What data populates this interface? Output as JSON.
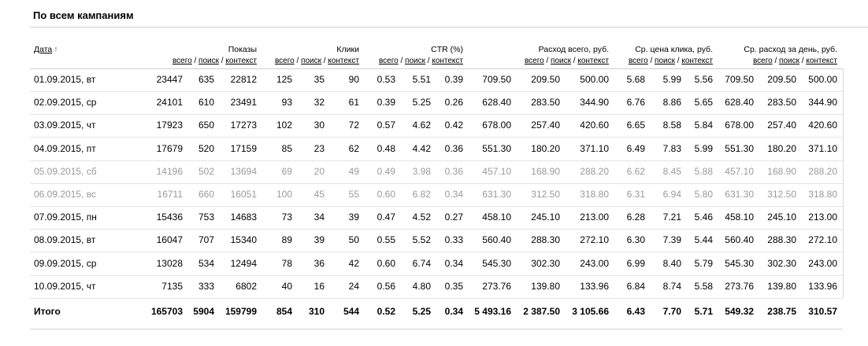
{
  "title": "По всем кампаниям",
  "header": {
    "date_label": "Дата",
    "sort_arrow": "↑",
    "groups": [
      {
        "label": "Показы"
      },
      {
        "label": "Клики"
      },
      {
        "label": "CTR (%)"
      },
      {
        "label": "Расход всего, руб."
      },
      {
        "label": "Ср. цена клика, руб."
      },
      {
        "label": "Ср. расход за день, руб."
      }
    ],
    "sub_labels": {
      "all": "всего",
      "search": "поиск",
      "context": "контекст",
      "sep": "/"
    }
  },
  "rows": [
    {
      "date": "01.09.2015, вт",
      "weekend": false,
      "v": [
        "23447",
        "635",
        "22812",
        "125",
        "35",
        "90",
        "0.53",
        "5.51",
        "0.39",
        "709.50",
        "209.50",
        "500.00",
        "5.68",
        "5.99",
        "5.56",
        "709.50",
        "209.50",
        "500.00"
      ]
    },
    {
      "date": "02.09.2015, ср",
      "weekend": false,
      "v": [
        "24101",
        "610",
        "23491",
        "93",
        "32",
        "61",
        "0.39",
        "5.25",
        "0.26",
        "628.40",
        "283.50",
        "344.90",
        "6.76",
        "8.86",
        "5.65",
        "628.40",
        "283.50",
        "344.90"
      ]
    },
    {
      "date": "03.09.2015, чт",
      "weekend": false,
      "v": [
        "17923",
        "650",
        "17273",
        "102",
        "30",
        "72",
        "0.57",
        "4.62",
        "0.42",
        "678.00",
        "257.40",
        "420.60",
        "6.65",
        "8.58",
        "5.84",
        "678.00",
        "257.40",
        "420.60"
      ]
    },
    {
      "date": "04.09.2015, пт",
      "weekend": false,
      "v": [
        "17679",
        "520",
        "17159",
        "85",
        "23",
        "62",
        "0.48",
        "4.42",
        "0.36",
        "551.30",
        "180.20",
        "371.10",
        "6.49",
        "7.83",
        "5.99",
        "551.30",
        "180.20",
        "371.10"
      ]
    },
    {
      "date": "05.09.2015, сб",
      "weekend": true,
      "v": [
        "14196",
        "502",
        "13694",
        "69",
        "20",
        "49",
        "0.49",
        "3.98",
        "0.36",
        "457.10",
        "168.90",
        "288.20",
        "6.62",
        "8.45",
        "5.88",
        "457.10",
        "168.90",
        "288.20"
      ]
    },
    {
      "date": "06.09.2015, вс",
      "weekend": true,
      "v": [
        "16711",
        "660",
        "16051",
        "100",
        "45",
        "55",
        "0.60",
        "6.82",
        "0.34",
        "631.30",
        "312.50",
        "318.80",
        "6.31",
        "6.94",
        "5.80",
        "631.30",
        "312.50",
        "318.80"
      ]
    },
    {
      "date": "07.09.2015, пн",
      "weekend": false,
      "v": [
        "15436",
        "753",
        "14683",
        "73",
        "34",
        "39",
        "0.47",
        "4.52",
        "0.27",
        "458.10",
        "245.10",
        "213.00",
        "6.28",
        "7.21",
        "5.46",
        "458.10",
        "245.10",
        "213.00"
      ]
    },
    {
      "date": "08.09.2015, вт",
      "weekend": false,
      "v": [
        "16047",
        "707",
        "15340",
        "89",
        "39",
        "50",
        "0.55",
        "5.52",
        "0.33",
        "560.40",
        "288.30",
        "272.10",
        "6.30",
        "7.39",
        "5.44",
        "560.40",
        "288.30",
        "272.10"
      ]
    },
    {
      "date": "09.09.2015, ср",
      "weekend": false,
      "v": [
        "13028",
        "534",
        "12494",
        "78",
        "36",
        "42",
        "0.60",
        "6.74",
        "0.34",
        "545.30",
        "302.30",
        "243.00",
        "6.99",
        "8.40",
        "5.79",
        "545.30",
        "302.30",
        "243.00"
      ]
    },
    {
      "date": "10.09.2015, чт",
      "weekend": false,
      "v": [
        "7135",
        "333",
        "6802",
        "40",
        "16",
        "24",
        "0.56",
        "4.80",
        "0.35",
        "273.76",
        "139.80",
        "133.96",
        "6.84",
        "8.74",
        "5.58",
        "273.76",
        "139.80",
        "133.96"
      ]
    }
  ],
  "total": {
    "date": "Итого",
    "v": [
      "165703",
      "5904",
      "159799",
      "854",
      "310",
      "544",
      "0.52",
      "5.25",
      "0.34",
      "5 493.16",
      "2 387.50",
      "3 105.66",
      "6.43",
      "7.70",
      "5.71",
      "549.32",
      "238.75",
      "310.57"
    ]
  },
  "colors": {
    "text": "#000000",
    "weekend_text": "#9a9a9a",
    "grid": "#e4e4e4"
  }
}
